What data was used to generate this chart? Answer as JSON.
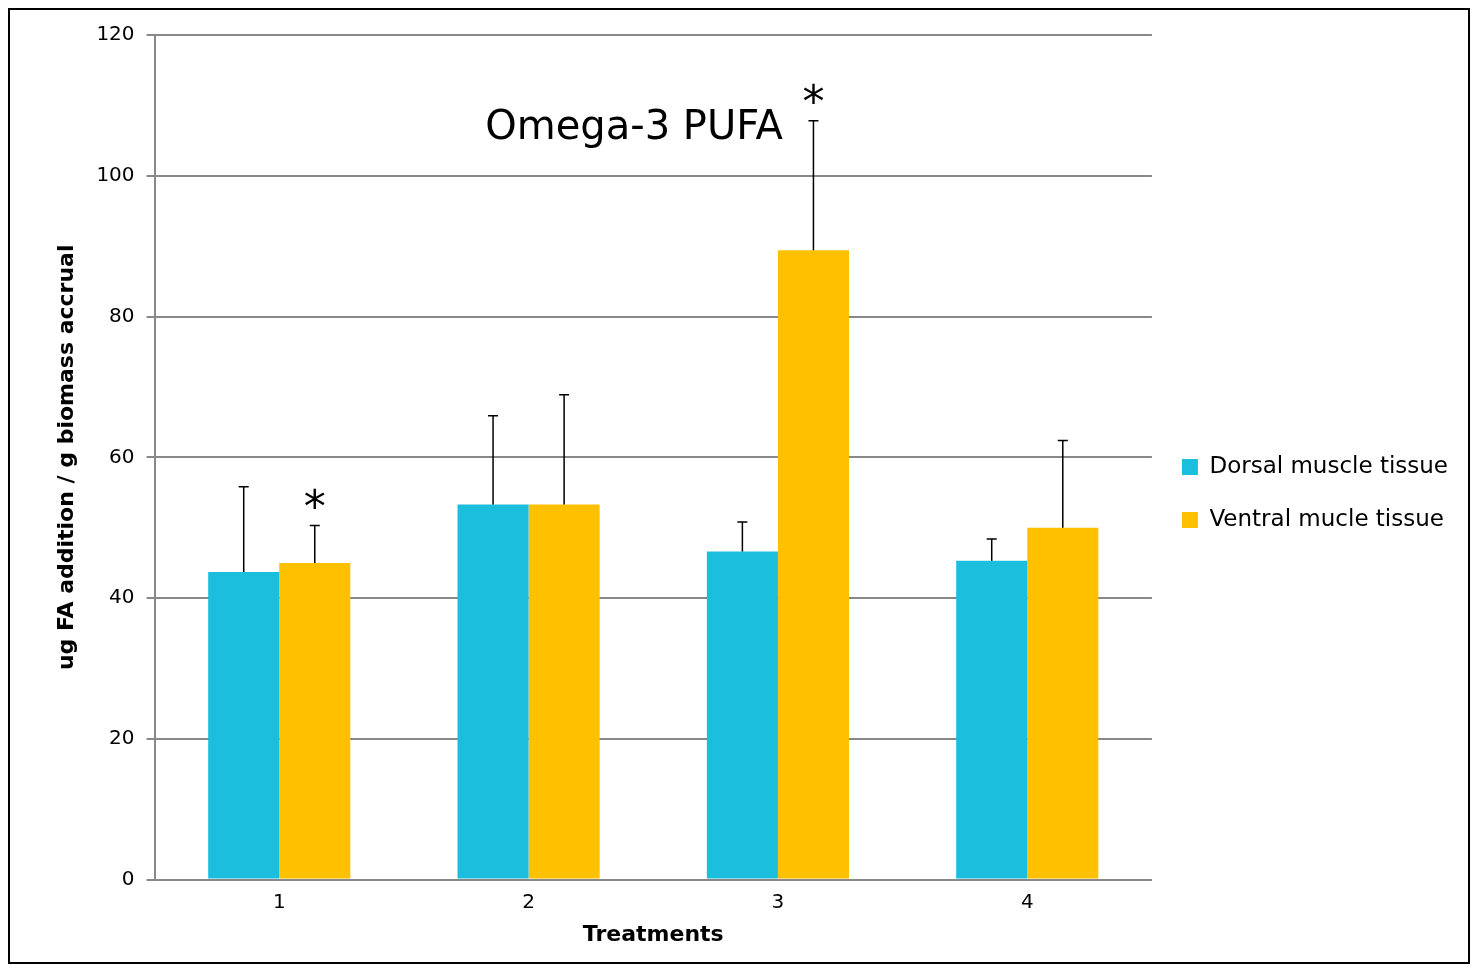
{
  "chart_data": {
    "type": "bar",
    "title": "Omega-3 PUFA",
    "xlabel": "Treatments",
    "ylabel": "ug FA addition / g biomass accrual",
    "categories": [
      "1",
      "2",
      "3",
      "4"
    ],
    "series": [
      {
        "name": "Dorsal muscle tissue",
        "color": "#1cbedd",
        "values": [
          43.7,
          53.3,
          46.6,
          45.3
        ],
        "errors": [
          [
            43.7,
            55.8
          ],
          [
            53.3,
            65.9
          ],
          [
            46.6,
            50.8
          ],
          [
            45.3,
            48.4
          ]
        ]
      },
      {
        "name": "Ventral mucle tissue",
        "color": "#ffc000",
        "values": [
          45.0,
          53.3,
          89.4,
          50.0
        ],
        "errors": [
          [
            45.0,
            50.3
          ],
          [
            53.3,
            68.9
          ],
          [
            89.4,
            107.8
          ],
          [
            50.0,
            62.4
          ]
        ]
      }
    ],
    "annotations": [
      {
        "text": "*",
        "x": "1",
        "y": 45.0
      },
      {
        "text": "*",
        "x": "3",
        "y": 89.4
      }
    ],
    "ylim": [
      0,
      120
    ],
    "yticks": [
      0,
      20,
      40,
      60,
      80,
      100,
      120
    ],
    "grid": "y",
    "legend": "right"
  }
}
